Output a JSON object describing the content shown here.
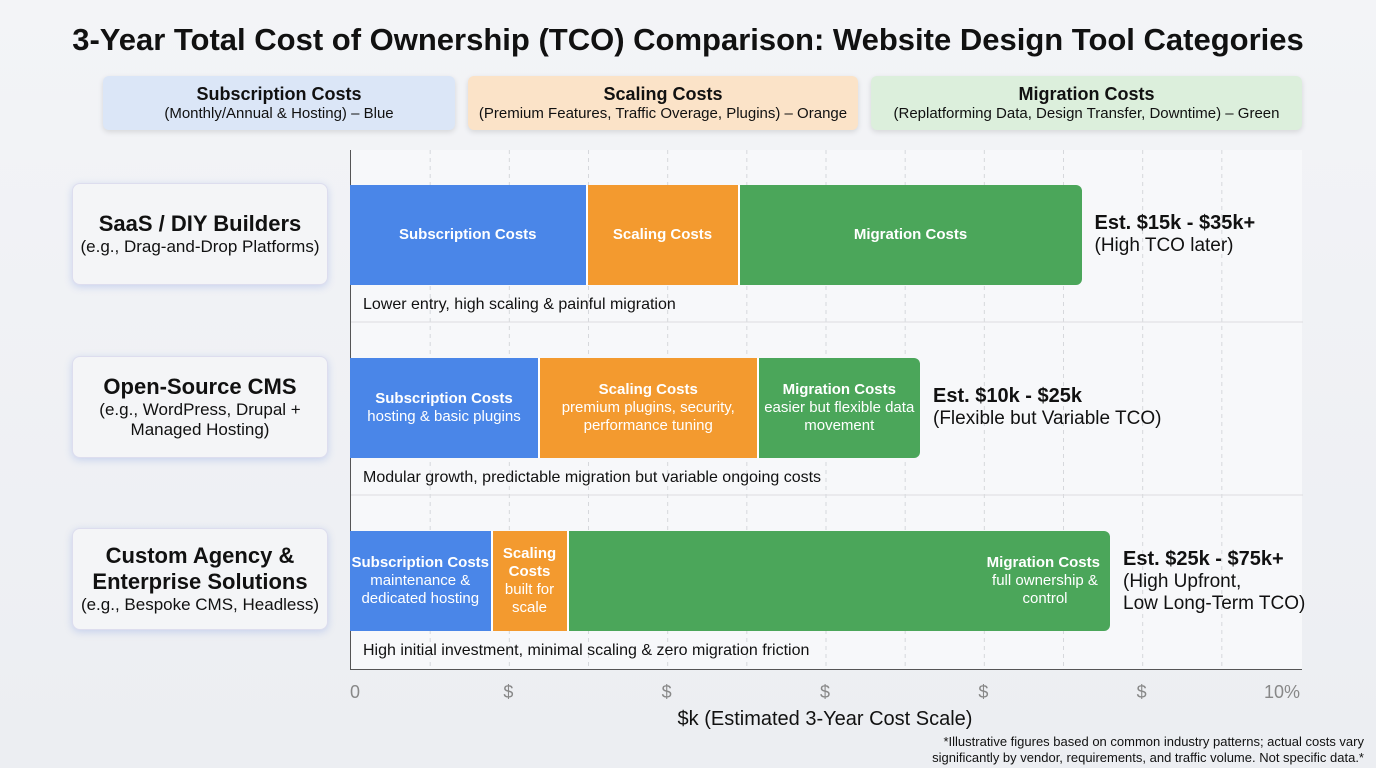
{
  "title": "3-Year Total Cost of Ownership (TCO) Comparison: Website Design Tool Categories",
  "legend": [
    {
      "title": "Subscription Costs",
      "sub": "(Monthly/Annual & Hosting) – Blue",
      "color": "#dbe6f7"
    },
    {
      "title": "Scaling Costs",
      "sub": "(Premium Features, Traffic Overage, Plugins) – Orange",
      "color": "#fbe3c8"
    },
    {
      "title": "Migration Costs",
      "sub": "(Replatforming Data, Design Transfer, Downtime) – Green",
      "color": "#dcefdc"
    }
  ],
  "colors": {
    "subscription": "#4a86e8",
    "scaling": "#f39a2f",
    "migration": "#4ba65a"
  },
  "chart_data": {
    "type": "bar",
    "orientation": "horizontal",
    "stacked": true,
    "title": "3-Year Total Cost of Ownership (TCO) Comparison: Website Design Tool Categories",
    "xlabel": "$k (Estimated 3-Year Cost Scale)",
    "xlim": [
      0,
      100
    ],
    "tick_labels": [
      "0",
      "$",
      "$",
      "$",
      "$",
      "$",
      "10%"
    ],
    "categories": [
      {
        "name": "SaaS / DIY Builders",
        "sub": "(e.g., Drag-and-Drop Platforms)",
        "note": "Lower entry, high scaling & painful migration",
        "est": "Est. $15k - $35k+",
        "est_sub": [
          "(High TCO later)"
        ],
        "segments": [
          {
            "series": "subscription",
            "value": 25,
            "label": "Subscription Costs",
            "desc": ""
          },
          {
            "series": "scaling",
            "value": 16,
            "label": "Scaling Costs",
            "desc": ""
          },
          {
            "series": "migration",
            "value": 36,
            "label": "Migration Costs",
            "desc": ""
          }
        ]
      },
      {
        "name": "Open-Source CMS",
        "sub": "(e.g., WordPress, Drupal + Managed Hosting)",
        "note": "Modular growth, predictable migration but variable ongoing costs",
        "est": "Est. $10k - $25k",
        "est_sub": [
          "(Flexible but Variable TCO)"
        ],
        "segments": [
          {
            "series": "subscription",
            "value": 20,
            "label": "Subscription Costs",
            "desc": "hosting & basic plugins"
          },
          {
            "series": "scaling",
            "value": 23,
            "label": "Scaling Costs",
            "desc": "premium plugins, security, performance tuning"
          },
          {
            "series": "migration",
            "value": 17,
            "label": "Migration Costs",
            "desc": "easier but flexible data movement"
          }
        ]
      },
      {
        "name": "Custom Agency & Enterprise Solutions",
        "sub": "(e.g., Bespoke CMS, Headless)",
        "note": "High initial investment, minimal scaling & zero migration friction",
        "est": "Est. $25k - $75k+",
        "est_sub": [
          "(High Upfront,",
          "Low Long-Term TCO)"
        ],
        "segments": [
          {
            "series": "subscription",
            "value": 15,
            "label": "Subscription Costs",
            "desc": "maintenance & dedicated hosting"
          },
          {
            "series": "scaling",
            "value": 8,
            "label": "Scaling Costs",
            "desc": "built for scale"
          },
          {
            "series": "migration",
            "value": 57,
            "label": "Migration Costs",
            "desc": "full ownership & control"
          }
        ]
      }
    ],
    "grid": true
  },
  "footnote": [
    "*Illustrative figures based on common industry patterns; actual costs vary",
    "significantly by vendor, requirements, and traffic volume. Not specific data.*"
  ]
}
